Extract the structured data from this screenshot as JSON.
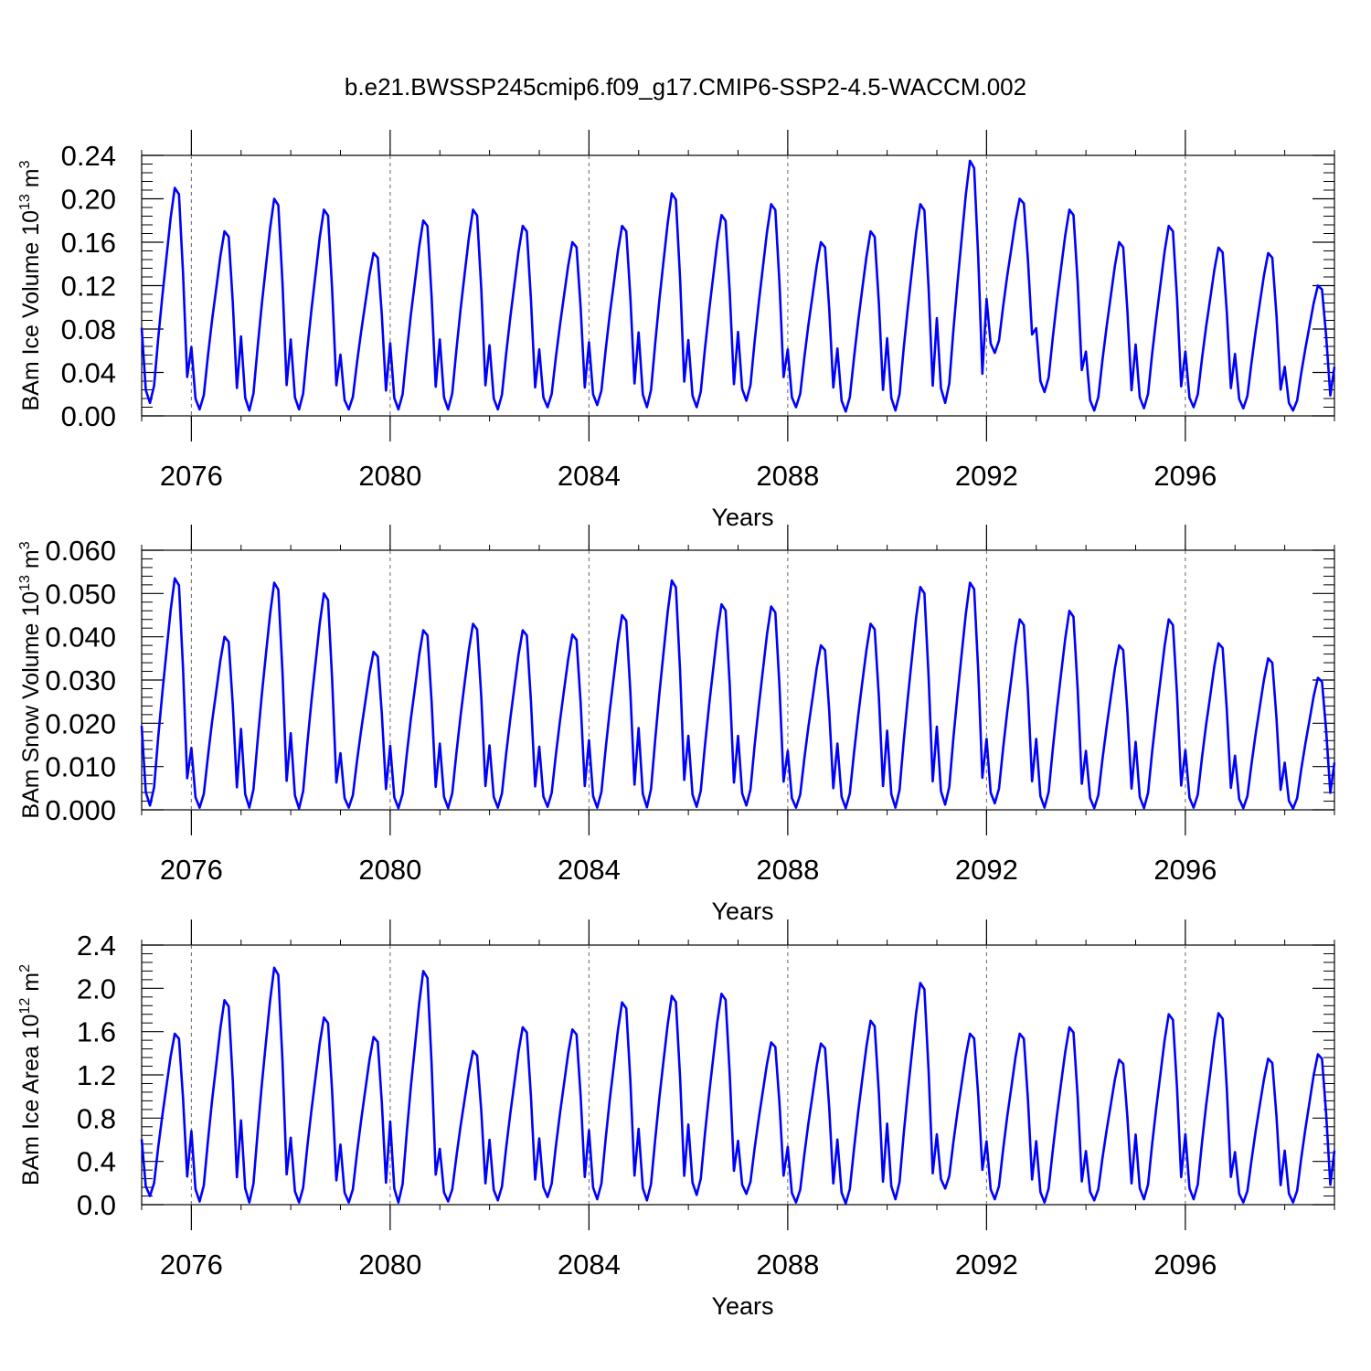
{
  "title": "b.e21.BWSSP245cmip6.f09_g17.CMIP6-SSP2-4.5-WACCM.002",
  "line_color": "#0000ff",
  "chart_data": [
    {
      "type": "line",
      "ylabel": "BAm Ice Volume 10",
      "ylabel_exp": "13",
      "ylabel_unit": "m",
      "ylabel_unit_exp": "3",
      "xlabel": "Years",
      "x_start": 2075.0,
      "x_step": 0.083333,
      "xlim": [
        2075.0,
        2099.0
      ],
      "ylim": [
        0,
        0.24
      ],
      "yticks": [
        0.0,
        0.04,
        0.08,
        0.12,
        0.16,
        0.2,
        0.24
      ],
      "ytick_labels": [
        "0.00",
        "0.04",
        "0.08",
        "0.12",
        "0.16",
        "0.20",
        "0.24"
      ],
      "xticks": [
        2076,
        2080,
        2084,
        2088,
        2092,
        2096
      ],
      "xtick_labels": [
        "2076",
        "2080",
        "2084",
        "2088",
        "2092",
        "2096"
      ],
      "annual_max": [
        0.21,
        0.17,
        0.2,
        0.19,
        0.15,
        0.18,
        0.19,
        0.175,
        0.16,
        0.175,
        0.205,
        0.185,
        0.195,
        0.16,
        0.17,
        0.195,
        0.235,
        0.2,
        0.19,
        0.16,
        0.175,
        0.155,
        0.15,
        0.12
      ],
      "annual_min": [
        0.012,
        0.006,
        0.005,
        0.006,
        0.006,
        0.006,
        0.006,
        0.006,
        0.008,
        0.01,
        0.008,
        0.008,
        0.014,
        0.008,
        0.004,
        0.005,
        0.012,
        0.058,
        0.022,
        0.005,
        0.007,
        0.008,
        0.007,
        0.005
      ],
      "series": [
        {
          "name": "",
          "values": []
        }
      ]
    },
    {
      "type": "line",
      "ylabel": "BAm Snow Volume 10",
      "ylabel_exp": "13",
      "ylabel_unit": "m",
      "ylabel_unit_exp": "3",
      "xlabel": "Years",
      "x_start": 2075.0,
      "x_step": 0.083333,
      "xlim": [
        2075.0,
        2099.0
      ],
      "ylim": [
        0,
        0.06
      ],
      "yticks": [
        0.0,
        0.01,
        0.02,
        0.03,
        0.04,
        0.05,
        0.06
      ],
      "ytick_labels": [
        "0.000",
        "0.010",
        "0.020",
        "0.030",
        "0.040",
        "0.050",
        "0.060"
      ],
      "xticks": [
        2076,
        2080,
        2084,
        2088,
        2092,
        2096
      ],
      "xtick_labels": [
        "2076",
        "2080",
        "2084",
        "2088",
        "2092",
        "2096"
      ],
      "annual_max": [
        0.0535,
        0.04,
        0.0525,
        0.05,
        0.0365,
        0.0415,
        0.043,
        0.0415,
        0.0405,
        0.045,
        0.053,
        0.0475,
        0.047,
        0.038,
        0.043,
        0.0515,
        0.0525,
        0.044,
        0.046,
        0.038,
        0.044,
        0.0385,
        0.035,
        0.0305
      ],
      "annual_min": [
        0.001,
        0.0005,
        0.0005,
        0.0003,
        0.0005,
        0.0004,
        0.0004,
        0.0005,
        0.0007,
        0.0005,
        0.0006,
        0.0007,
        0.001,
        0.0005,
        0.0004,
        0.0005,
        0.0012,
        0.0015,
        0.0005,
        0.0004,
        0.0004,
        0.0005,
        0.0004,
        0.0003
      ],
      "series": [
        {
          "name": "",
          "values": []
        }
      ]
    },
    {
      "type": "line",
      "ylabel": "BAm Ice Area 10",
      "ylabel_exp": "12",
      "ylabel_unit": "m",
      "ylabel_unit_exp": "2",
      "xlabel": "Years",
      "x_start": 2075.0,
      "x_step": 0.083333,
      "xlim": [
        2075.0,
        2099.0
      ],
      "ylim": [
        0,
        2.4
      ],
      "yticks": [
        0.0,
        0.4,
        0.8,
        1.2,
        1.6,
        2.0,
        2.4
      ],
      "ytick_labels": [
        "0.0",
        "0.4",
        "0.8",
        "1.2",
        "1.6",
        "2.0",
        "2.4"
      ],
      "xticks": [
        2076,
        2080,
        2084,
        2088,
        2092,
        2096
      ],
      "xtick_labels": [
        "2076",
        "2080",
        "2084",
        "2088",
        "2092",
        "2096"
      ],
      "annual_max": [
        1.58,
        1.89,
        2.19,
        1.73,
        1.55,
        2.16,
        1.42,
        1.64,
        1.62,
        1.87,
        1.93,
        1.95,
        1.5,
        1.49,
        1.7,
        2.05,
        1.58,
        1.58,
        1.64,
        1.34,
        1.76,
        1.77,
        1.35,
        1.39
      ],
      "annual_min": [
        0.08,
        0.03,
        0.02,
        0.02,
        0.02,
        0.02,
        0.03,
        0.04,
        0.07,
        0.05,
        0.04,
        0.09,
        0.1,
        0.02,
        0.01,
        0.05,
        0.15,
        0.05,
        0.02,
        0.04,
        0.05,
        0.05,
        0.02,
        0.02
      ],
      "series": [
        {
          "name": "",
          "values": []
        }
      ]
    }
  ]
}
